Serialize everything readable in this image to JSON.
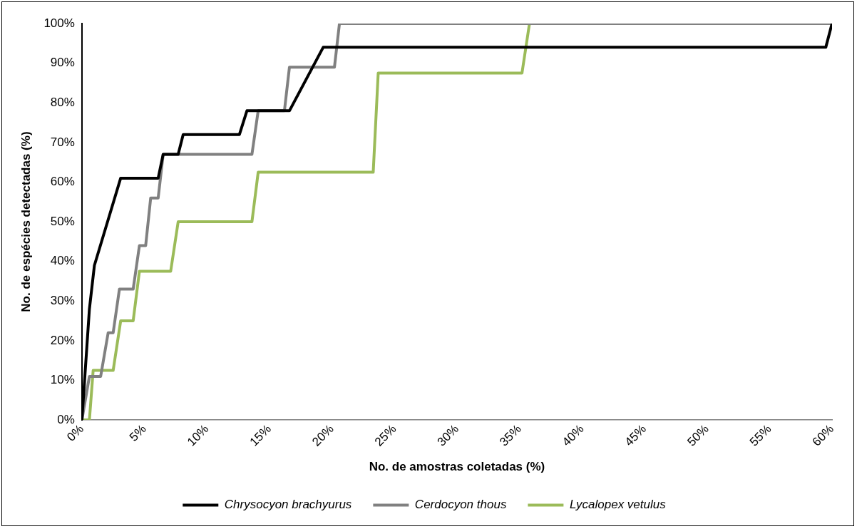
{
  "chart_data": {
    "type": "line",
    "xlabel": "No. de amostras coletadas (%)",
    "ylabel": "No. de espécies detectadas (%)",
    "xlim": [
      0,
      60
    ],
    "ylim": [
      0,
      100
    ],
    "xticks": [
      {
        "value": 0,
        "label": "0%"
      },
      {
        "value": 5,
        "label": "5%"
      },
      {
        "value": 10,
        "label": "10%"
      },
      {
        "value": 15,
        "label": "15%"
      },
      {
        "value": 20,
        "label": "20%"
      },
      {
        "value": 25,
        "label": "25%"
      },
      {
        "value": 30,
        "label": "30%"
      },
      {
        "value": 35,
        "label": "35%"
      },
      {
        "value": 40,
        "label": "40%"
      },
      {
        "value": 45,
        "label": "45%"
      },
      {
        "value": 50,
        "label": "50%"
      },
      {
        "value": 55,
        "label": "55%"
      },
      {
        "value": 60,
        "label": "60%"
      }
    ],
    "yticks": [
      {
        "value": 0,
        "label": "0%"
      },
      {
        "value": 10,
        "label": "10%"
      },
      {
        "value": 20,
        "label": "20%"
      },
      {
        "value": 30,
        "label": "30%"
      },
      {
        "value": 40,
        "label": "40%"
      },
      {
        "value": 50,
        "label": "50%"
      },
      {
        "value": 60,
        "label": "60%"
      },
      {
        "value": 70,
        "label": "70%"
      },
      {
        "value": 80,
        "label": "80%"
      },
      {
        "value": 90,
        "label": "90%"
      },
      {
        "value": 100,
        "label": "100%"
      }
    ],
    "grid": false,
    "legend": "bottom",
    "marker": "none",
    "line_style": "solid",
    "series": [
      {
        "name": "Chrysocyon brachyurus",
        "color": "#000000",
        "x": [
          0,
          0.6,
          1,
          3.1,
          6.1,
          6.5,
          7.7,
          8.1,
          12.6,
          13.2,
          16.6,
          19.3,
          59.5,
          60
        ],
        "values": [
          0,
          28,
          39,
          61,
          61,
          67,
          67,
          72,
          72,
          78,
          78,
          94,
          94,
          100
        ]
      },
      {
        "name": "Cerdocyon thous",
        "color": "#808080",
        "x": [
          0,
          0.6,
          1.5,
          2.1,
          2.5,
          3,
          4.1,
          4.6,
          5.1,
          5.5,
          6.1,
          6.5,
          13.6,
          14.1,
          16.2,
          16.6,
          20.2,
          20.6,
          60
        ],
        "values": [
          0,
          11,
          11,
          22,
          22,
          33,
          33,
          44,
          44,
          56,
          56,
          67,
          67,
          78,
          78,
          89,
          89,
          100,
          100
        ]
      },
      {
        "name": "Lycalopex vetulus",
        "color": "#9bbb59",
        "x": [
          0,
          0.6,
          0.9,
          2.5,
          3.1,
          4.1,
          4.6,
          7.1,
          7.7,
          13.6,
          14.1,
          23.3,
          23.7,
          35.2,
          35.8,
          60
        ],
        "values": [
          0,
          0,
          12.5,
          12.5,
          25,
          25,
          37.5,
          37.5,
          50,
          50,
          62.5,
          62.5,
          87.5,
          87.5,
          100,
          100
        ]
      }
    ]
  }
}
